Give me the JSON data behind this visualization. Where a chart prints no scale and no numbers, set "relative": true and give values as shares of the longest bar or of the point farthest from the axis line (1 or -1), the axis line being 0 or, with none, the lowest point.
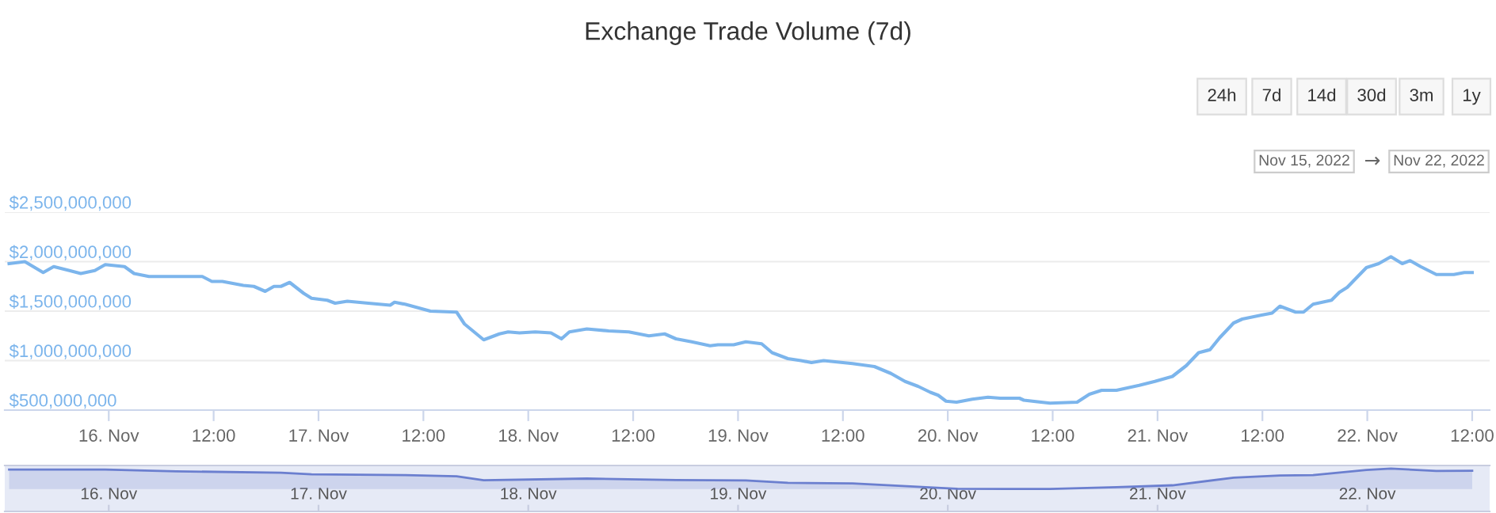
{
  "chart_data": [
    {
      "type": "line",
      "title": "Exchange Trade Volume (7d)",
      "annotations": [
        "24h",
        "7d",
        "14d",
        "30d",
        "3m",
        "1y",
        "Nov 15, 2022",
        "→",
        "Nov 22, 2022"
      ],
      "series": [
        {
          "color": "#7cb5ec",
          "x": [
            "2022-11-15T12:36",
            "2022-11-15T14:24",
            "2022-11-15T16:30",
            "2022-11-15T17:42",
            "2022-11-15T19:30",
            "2022-11-15T20:48",
            "2022-11-15T22:24",
            "2022-11-15T23:36",
            "2022-11-16T01:48",
            "2022-11-16T02:54",
            "2022-11-16T04:36",
            "2022-11-16T07:42",
            "2022-11-16T10:42",
            "2022-11-16T11:48",
            "2022-11-16T13:00",
            "2022-11-16T15:24",
            "2022-11-16T16:36",
            "2022-11-16T17:54",
            "2022-11-16T18:54",
            "2022-11-16T19:42",
            "2022-11-16T20:42",
            "2022-11-16T22:18",
            "2022-11-16T23:12",
            "2022-11-17T01:00",
            "2022-11-17T01:54",
            "2022-11-17T03:18",
            "2022-11-17T05:42",
            "2022-11-17T08:12",
            "2022-11-17T08:42",
            "2022-11-17T09:54",
            "2022-11-17T12:48",
            "2022-11-17T15:48",
            "2022-11-17T16:42",
            "2022-11-17T18:54",
            "2022-11-17T20:42",
            "2022-11-17T21:42",
            "2022-11-17T23:00",
            "2022-11-18T00:48",
            "2022-11-18T02:36",
            "2022-11-18T03:48",
            "2022-11-18T04:42",
            "2022-11-18T06:42",
            "2022-11-18T09:12",
            "2022-11-18T11:30",
            "2022-11-18T13:48",
            "2022-11-18T15:36",
            "2022-11-18T16:54",
            "2022-11-18T18:42",
            "2022-11-18T20:48",
            "2022-11-18T21:42",
            "2022-11-18T23:30",
            "2022-11-19T00:54",
            "2022-11-19T02:42",
            "2022-11-19T03:54",
            "2022-11-19T05:42",
            "2022-11-19T07:12",
            "2022-11-19T08:24",
            "2022-11-19T09:48",
            "2022-11-19T13:06",
            "2022-11-19T15:36",
            "2022-11-19T17:30",
            "2022-11-19T19:06",
            "2022-11-19T20:36",
            "2022-11-19T22:00",
            "2022-11-19T22:54",
            "2022-11-19T23:48",
            "2022-11-20T01:00",
            "2022-11-20T02:48",
            "2022-11-20T04:36",
            "2022-11-20T06:00",
            "2022-11-20T08:12",
            "2022-11-20T08:42",
            "2022-11-20T11:42",
            "2022-11-20T14:48",
            "2022-11-20T16:12",
            "2022-11-20T17:36",
            "2022-11-20T19:18",
            "2022-11-20T21:54",
            "2022-11-20T23:42",
            "2022-11-21T01:42",
            "2022-11-21T03:18",
            "2022-11-21T04:42",
            "2022-11-21T06:00",
            "2022-11-21T07:06",
            "2022-11-21T08:42",
            "2022-11-21T09:42",
            "2022-11-21T11:54",
            "2022-11-21T13:06",
            "2022-11-21T14:00",
            "2022-11-21T15:48",
            "2022-11-21T16:42",
            "2022-11-21T17:48",
            "2022-11-21T19:54",
            "2022-11-21T20:48",
            "2022-11-21T21:42",
            "2022-11-21T23:54",
            "2022-11-22T01:18",
            "2022-11-22T02:42",
            "2022-11-22T04:00",
            "2022-11-22T04:54",
            "2022-11-22T06:06",
            "2022-11-22T07:54",
            "2022-11-22T09:54",
            "2022-11-22T11:06",
            "2022-11-22T12:00"
          ],
          "values": [
            1980000000,
            2000000000,
            1890000000,
            1950000000,
            1910000000,
            1880000000,
            1910000000,
            1970000000,
            1950000000,
            1880000000,
            1850000000,
            1850000000,
            1850000000,
            1800000000,
            1800000000,
            1760000000,
            1750000000,
            1700000000,
            1750000000,
            1750000000,
            1790000000,
            1680000000,
            1630000000,
            1610000000,
            1580000000,
            1600000000,
            1580000000,
            1560000000,
            1590000000,
            1570000000,
            1500000000,
            1490000000,
            1370000000,
            1210000000,
            1270000000,
            1290000000,
            1280000000,
            1290000000,
            1280000000,
            1220000000,
            1290000000,
            1320000000,
            1300000000,
            1290000000,
            1250000000,
            1270000000,
            1220000000,
            1190000000,
            1150000000,
            1160000000,
            1160000000,
            1190000000,
            1170000000,
            1080000000,
            1020000000,
            1000000000,
            980000000,
            1000000000,
            970000000,
            940000000,
            870000000,
            790000000,
            740000000,
            680000000,
            650000000,
            590000000,
            580000000,
            610000000,
            630000000,
            620000000,
            620000000,
            600000000,
            570000000,
            580000000,
            660000000,
            700000000,
            700000000,
            750000000,
            790000000,
            840000000,
            950000000,
            1080000000,
            1110000000,
            1230000000,
            1380000000,
            1420000000,
            1460000000,
            1480000000,
            1550000000,
            1490000000,
            1490000000,
            1570000000,
            1610000000,
            1690000000,
            1740000000,
            1940000000,
            1980000000,
            2050000000,
            1980000000,
            2010000000,
            1950000000,
            1870000000,
            1870000000,
            1890000000,
            1890000000
          ]
        }
      ],
      "xlim": [
        "2022-11-15T12:06",
        "2022-11-22T14:00"
      ],
      "xticks": [
        {
          "value": "2022-11-16",
          "label": "16. Nov"
        },
        {
          "value": "2022-11-16T12:00",
          "label": "12:00"
        },
        {
          "value": "2022-11-17",
          "label": "17. Nov"
        },
        {
          "value": "2022-11-17T12:00",
          "label": "12:00"
        },
        {
          "value": "2022-11-18",
          "label": "18. Nov"
        },
        {
          "value": "2022-11-18T12:00",
          "label": "12:00"
        },
        {
          "value": "2022-11-19",
          "label": "19. Nov"
        },
        {
          "value": "2022-11-19T12:00",
          "label": "12:00"
        },
        {
          "value": "2022-11-20",
          "label": "20. Nov"
        },
        {
          "value": "2022-11-20T12:00",
          "label": "12:00"
        },
        {
          "value": "2022-11-21",
          "label": "21. Nov"
        },
        {
          "value": "2022-11-21T12:00",
          "label": "12:00"
        },
        {
          "value": "2022-11-22",
          "label": "22. Nov"
        },
        {
          "value": "2022-11-22T12:00",
          "label": "12:00"
        }
      ],
      "ylim": [
        500000000,
        2500000000
      ],
      "yticks": [
        {
          "value": 500000000,
          "label": "$500,000,000"
        },
        {
          "value": 1000000000,
          "label": "$1,000,000,000"
        },
        {
          "value": 1500000000,
          "label": "$1,500,000,000"
        },
        {
          "value": 2000000000,
          "label": "$2,000,000,000"
        },
        {
          "value": 2500000000,
          "label": "$2,500,000,000"
        }
      ],
      "grid": "y",
      "legend": false,
      "marker": "none",
      "line_style": "solid"
    },
    {
      "type": "area",
      "relative": true,
      "tick_labels": "x",
      "series": [
        {
          "color": "#6b7fcf",
          "x": [
            "2022-11-15T12:36",
            "2022-11-15T23:36",
            "2022-11-16T07:42",
            "2022-11-16T19:42",
            "2022-11-16T23:12",
            "2022-11-17T09:54",
            "2022-11-17T15:48",
            "2022-11-17T18:54",
            "2022-11-18T06:42",
            "2022-11-18T16:54",
            "2022-11-19T00:54",
            "2022-11-19T05:42",
            "2022-11-19T13:06",
            "2022-11-19T20:36",
            "2022-11-20T01:00",
            "2022-11-20T11:42",
            "2022-11-20T19:18",
            "2022-11-21T01:42",
            "2022-11-21T08:42",
            "2022-11-21T14:00",
            "2022-11-21T17:48",
            "2022-11-21T23:54",
            "2022-11-22T02:42",
            "2022-11-22T07:54",
            "2022-11-22T12:00"
          ],
          "values": [
            0.95,
            0.95,
            0.865,
            0.8,
            0.72,
            0.68,
            0.62,
            0.43,
            0.51,
            0.44,
            0.42,
            0.3,
            0.27,
            0.11,
            0.01,
            0,
            0.09,
            0.18,
            0.55,
            0.66,
            0.68,
            0.93,
            1,
            0.88,
            0.89
          ]
        }
      ],
      "xlim": [
        "2022-11-15T12:06",
        "2022-11-22T14:00"
      ],
      "xticks": [
        {
          "value": "2022-11-16",
          "label": "16. Nov"
        },
        {
          "value": "2022-11-17",
          "label": "17. Nov"
        },
        {
          "value": "2022-11-18",
          "label": "18. Nov"
        },
        {
          "value": "2022-11-19",
          "label": "19. Nov"
        },
        {
          "value": "2022-11-20",
          "label": "20. Nov"
        },
        {
          "value": "2022-11-21",
          "label": "21. Nov"
        },
        {
          "value": "2022-11-22",
          "label": "22. Nov"
        }
      ]
    }
  ]
}
